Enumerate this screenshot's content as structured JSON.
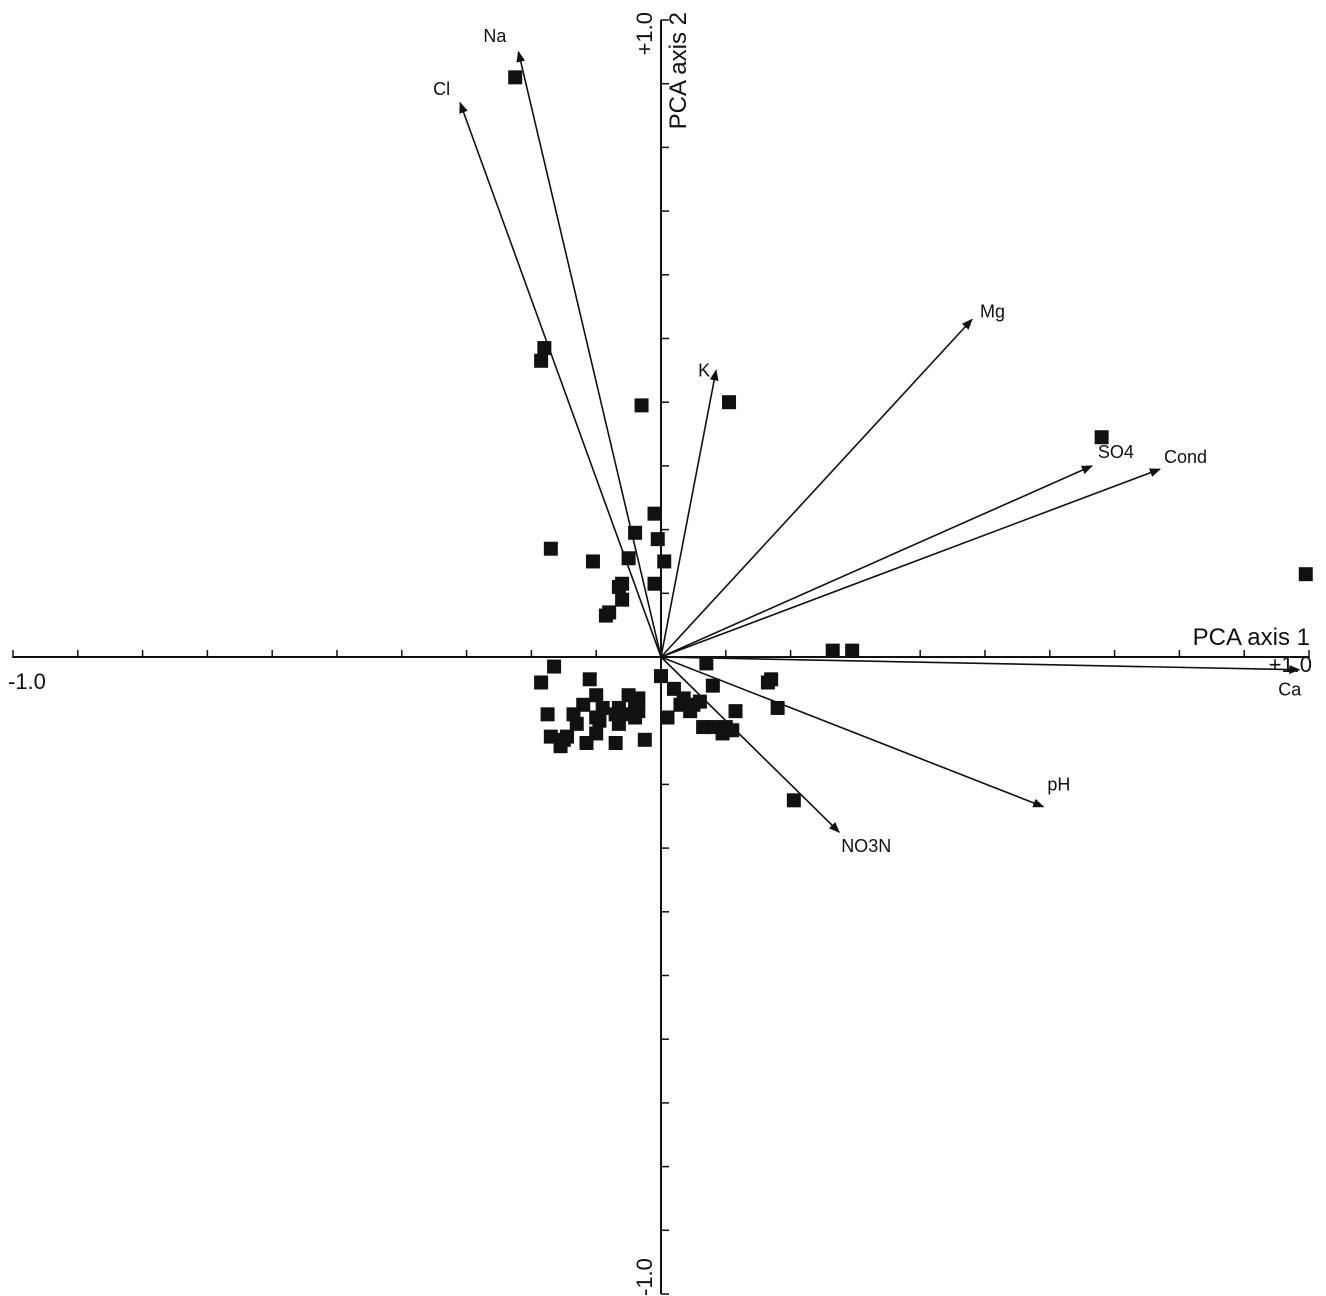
{
  "chart_data": {
    "type": "scatter",
    "title": "",
    "xlabel": "PCA axis 1",
    "ylabel": "PCA axis 2",
    "xlim": [
      -1.0,
      1.0
    ],
    "ylim": [
      -1.0,
      1.0
    ],
    "x_tick_labels": {
      "min": "-1.0",
      "max": "+1.0"
    },
    "y_tick_labels": {
      "min": "-1.0",
      "max": "+1.0"
    },
    "grid": false,
    "legend": "none",
    "colors": {
      "ink": "#111111",
      "background": "#ffffff"
    },
    "vectors": [
      {
        "label": "Na",
        "x": -0.22,
        "y": 0.95
      },
      {
        "label": "Cl",
        "x": -0.31,
        "y": 0.87
      },
      {
        "label": "K",
        "x": 0.085,
        "y": 0.45
      },
      {
        "label": "Mg",
        "x": 0.48,
        "y": 0.53
      },
      {
        "label": "SO4",
        "x": 0.665,
        "y": 0.3
      },
      {
        "label": "Cond",
        "x": 0.77,
        "y": 0.295
      },
      {
        "label": "Ca",
        "x": 0.985,
        "y": -0.02
      },
      {
        "label": "pH",
        "x": 0.59,
        "y": -0.235
      },
      {
        "label": "NO3N",
        "x": 0.275,
        "y": -0.275
      }
    ],
    "series": [
      {
        "values": [
          [
            -0.225,
            0.91
          ],
          [
            -0.18,
            0.485
          ],
          [
            -0.185,
            0.465
          ],
          [
            -0.03,
            0.395
          ],
          [
            0.105,
            0.4
          ],
          [
            0.68,
            0.345
          ],
          [
            0.995,
            0.13
          ],
          [
            -0.17,
            0.17
          ],
          [
            -0.105,
            0.15
          ],
          [
            -0.04,
            0.195
          ],
          [
            -0.01,
            0.225
          ],
          [
            -0.005,
            0.185
          ],
          [
            -0.05,
            0.155
          ],
          [
            0.005,
            0.15
          ],
          [
            -0.06,
            0.115
          ],
          [
            -0.065,
            0.11
          ],
          [
            -0.06,
            0.09
          ],
          [
            -0.08,
            0.07
          ],
          [
            -0.085,
            0.065
          ],
          [
            -0.01,
            0.115
          ],
          [
            0.265,
            0.01
          ],
          [
            0.295,
            0.01
          ],
          [
            0.07,
            -0.01
          ],
          [
            0.0,
            -0.03
          ],
          [
            -0.165,
            -0.015
          ],
          [
            -0.185,
            -0.04
          ],
          [
            -0.11,
            -0.035
          ],
          [
            0.02,
            -0.05
          ],
          [
            0.08,
            -0.045
          ],
          [
            0.17,
            -0.035
          ],
          [
            0.165,
            -0.04
          ],
          [
            -0.1,
            -0.06
          ],
          [
            -0.12,
            -0.075
          ],
          [
            -0.05,
            -0.06
          ],
          [
            -0.035,
            -0.065
          ],
          [
            0.035,
            -0.065
          ],
          [
            0.06,
            -0.07
          ],
          [
            0.03,
            -0.075
          ],
          [
            0.05,
            -0.075
          ],
          [
            -0.09,
            -0.08
          ],
          [
            -0.065,
            -0.08
          ],
          [
            -0.04,
            -0.08
          ],
          [
            -0.035,
            -0.085
          ],
          [
            0.115,
            -0.085
          ],
          [
            0.18,
            -0.08
          ],
          [
            0.045,
            -0.085
          ],
          [
            -0.175,
            -0.09
          ],
          [
            -0.135,
            -0.09
          ],
          [
            -0.1,
            -0.095
          ],
          [
            -0.07,
            -0.09
          ],
          [
            -0.055,
            -0.09
          ],
          [
            -0.04,
            -0.095
          ],
          [
            0.01,
            -0.095
          ],
          [
            -0.13,
            -0.105
          ],
          [
            -0.095,
            -0.1
          ],
          [
            -0.065,
            -0.105
          ],
          [
            0.065,
            -0.11
          ],
          [
            0.08,
            -0.11
          ],
          [
            0.1,
            -0.11
          ],
          [
            0.11,
            -0.115
          ],
          [
            0.095,
            -0.12
          ],
          [
            -0.1,
            -0.12
          ],
          [
            -0.17,
            -0.125
          ],
          [
            -0.15,
            -0.13
          ],
          [
            -0.145,
            -0.125
          ],
          [
            -0.115,
            -0.135
          ],
          [
            -0.07,
            -0.135
          ],
          [
            -0.025,
            -0.13
          ],
          [
            -0.155,
            -0.14
          ],
          [
            0.205,
            -0.225
          ]
        ]
      }
    ]
  }
}
